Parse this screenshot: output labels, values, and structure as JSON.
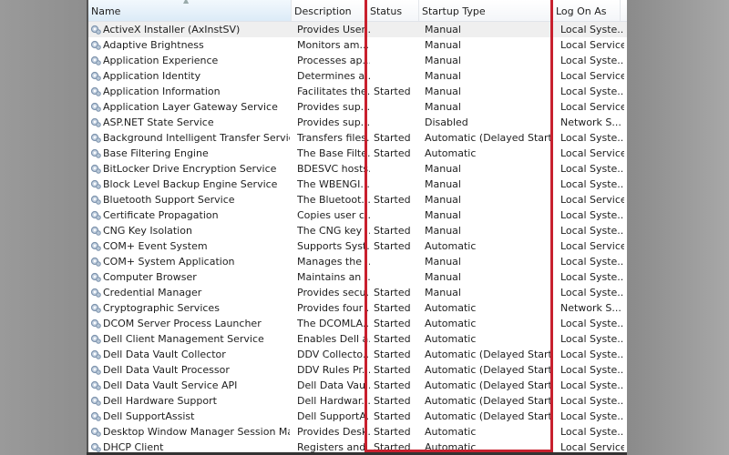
{
  "columns": [
    "Name",
    "Description",
    "Status",
    "Startup Type",
    "Log On As"
  ],
  "highlight_color": "#c8202e",
  "services": [
    [
      "ActiveX Installer (AxInstSV)",
      "Provides User...",
      "",
      "Manual",
      "Local Syste..."
    ],
    [
      "Adaptive Brightness",
      "Monitors am...",
      "",
      "Manual",
      "Local Service"
    ],
    [
      "Application Experience",
      "Processes ap...",
      "",
      "Manual",
      "Local Syste..."
    ],
    [
      "Application Identity",
      "Determines a...",
      "",
      "Manual",
      "Local Service"
    ],
    [
      "Application Information",
      "Facilitates the...",
      "Started",
      "Manual",
      "Local Syste..."
    ],
    [
      "Application Layer Gateway Service",
      "Provides sup...",
      "",
      "Manual",
      "Local Service"
    ],
    [
      "ASP.NET State Service",
      "Provides sup...",
      "",
      "Disabled",
      "Network S..."
    ],
    [
      "Background Intelligent Transfer Service",
      "Transfers files...",
      "Started",
      "Automatic (Delayed Start)",
      "Local Syste..."
    ],
    [
      "Base Filtering Engine",
      "The Base Filte...",
      "Started",
      "Automatic",
      "Local Service"
    ],
    [
      "BitLocker Drive Encryption Service",
      "BDESVC hosts...",
      "",
      "Manual",
      "Local Syste..."
    ],
    [
      "Block Level Backup Engine Service",
      "The WBENGI...",
      "",
      "Manual",
      "Local Syste..."
    ],
    [
      "Bluetooth Support Service",
      "The Bluetoot...",
      "Started",
      "Manual",
      "Local Service"
    ],
    [
      "Certificate Propagation",
      "Copies user c...",
      "",
      "Manual",
      "Local Syste..."
    ],
    [
      "CNG Key Isolation",
      "The CNG key ...",
      "Started",
      "Manual",
      "Local Syste..."
    ],
    [
      "COM+ Event System",
      "Supports Syst...",
      "Started",
      "Automatic",
      "Local Service"
    ],
    [
      "COM+ System Application",
      "Manages the ...",
      "",
      "Manual",
      "Local Syste..."
    ],
    [
      "Computer Browser",
      "Maintains an ...",
      "",
      "Manual",
      "Local Syste..."
    ],
    [
      "Credential Manager",
      "Provides secu...",
      "Started",
      "Manual",
      "Local Syste..."
    ],
    [
      "Cryptographic Services",
      "Provides four ...",
      "Started",
      "Automatic",
      "Network S..."
    ],
    [
      "DCOM Server Process Launcher",
      "The DCOMLA...",
      "Started",
      "Automatic",
      "Local Syste..."
    ],
    [
      "Dell Client Management Service",
      "Enables Dell a...",
      "Started",
      "Automatic",
      "Local Syste..."
    ],
    [
      "Dell Data Vault Collector",
      "DDV Collecto...",
      "Started",
      "Automatic (Delayed Start)",
      "Local Syste..."
    ],
    [
      "Dell Data Vault Processor",
      "DDV Rules Pr...",
      "Started",
      "Automatic (Delayed Start)",
      "Local Syste..."
    ],
    [
      "Dell Data Vault Service API",
      "Dell Data Vaul...",
      "Started",
      "Automatic (Delayed Start)",
      "Local Syste..."
    ],
    [
      "Dell Hardware Support",
      "Dell Hardwar...",
      "Started",
      "Automatic (Delayed Start)",
      "Local Syste..."
    ],
    [
      "Dell SupportAssist",
      "Dell SupportA...",
      "Started",
      "Automatic (Delayed Start)",
      "Local Syste..."
    ],
    [
      "Desktop Window Manager Session Mana...",
      "Provides Desk...",
      "Started",
      "Automatic",
      "Local Syste..."
    ],
    [
      "DHCP Client",
      "Registers and ...",
      "Started",
      "Automatic",
      "Local Service"
    ]
  ]
}
